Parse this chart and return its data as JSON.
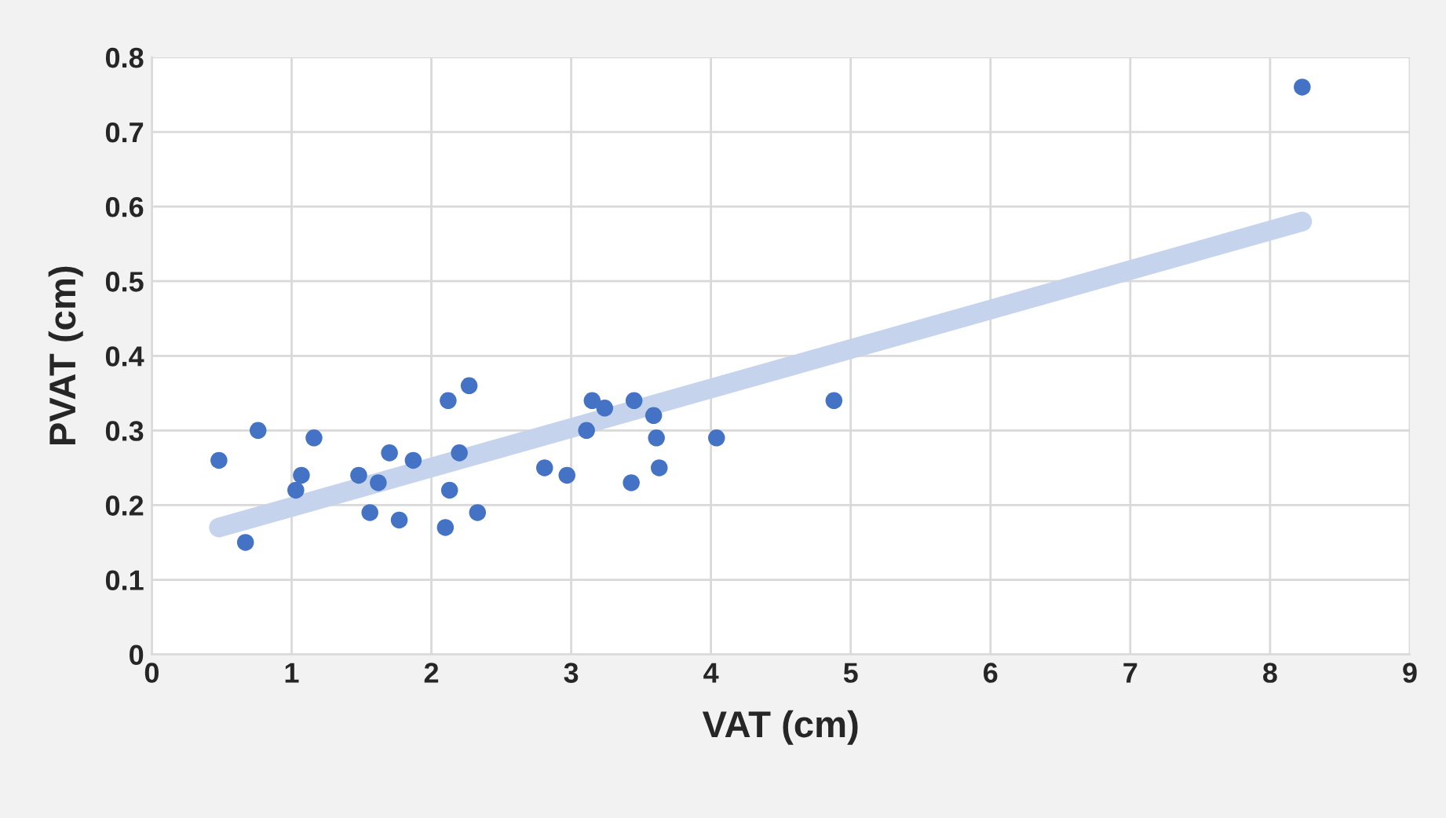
{
  "chart_data": {
    "type": "scatter",
    "xlabel": "VAT (cm)",
    "ylabel": "PVAT (cm)",
    "xlim": [
      0,
      9
    ],
    "xticks": [
      0,
      1,
      2,
      3,
      4,
      5,
      6,
      7,
      8,
      9
    ],
    "ylim": [
      0,
      0.8
    ],
    "yticks": [
      0,
      0.1,
      0.2,
      0.3,
      0.4,
      0.5,
      0.6,
      0.7,
      0.8
    ],
    "grid": true,
    "series": [
      {
        "marker": "circle",
        "color": "#4472c4",
        "x": [
          0.48,
          0.67,
          0.76,
          1.03,
          1.07,
          1.16,
          1.48,
          1.56,
          1.62,
          1.7,
          1.77,
          1.87,
          2.1,
          2.12,
          2.13,
          2.2,
          2.27,
          2.33,
          2.81,
          2.97,
          3.11,
          3.15,
          3.24,
          3.43,
          3.45,
          3.59,
          3.61,
          3.63,
          4.04,
          4.88,
          8.23
        ],
        "values": [
          0.26,
          0.15,
          0.3,
          0.22,
          0.24,
          0.29,
          0.24,
          0.19,
          0.23,
          0.27,
          0.18,
          0.26,
          0.17,
          0.34,
          0.22,
          0.27,
          0.36,
          0.19,
          0.25,
          0.24,
          0.3,
          0.34,
          0.33,
          0.23,
          0.34,
          0.32,
          0.29,
          0.25,
          0.29,
          0.34,
          0.76
        ]
      },
      {
        "type": "line",
        "marker": "none",
        "color": "#c5d4ec",
        "x": [
          0.48,
          8.23
        ],
        "values": [
          0.17,
          0.58
        ]
      }
    ]
  }
}
